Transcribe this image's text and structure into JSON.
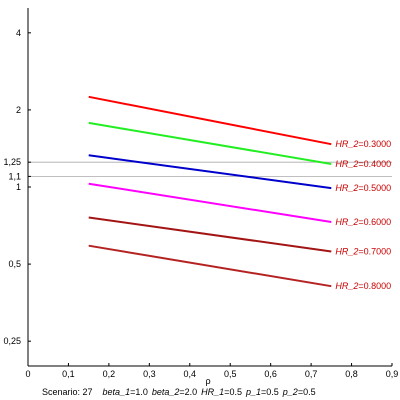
{
  "chart_data": {
    "type": "line",
    "title": "",
    "xlabel": "ρ",
    "ylabel": "",
    "xlim": [
      0,
      0.9
    ],
    "ylim": [
      0.2,
      5.0
    ],
    "y_scale": "log",
    "grid": false,
    "x_ticks": [
      {
        "value": 0,
        "label": "0"
      },
      {
        "value": 0.1,
        "label": "0,1"
      },
      {
        "value": 0.2,
        "label": "0,2"
      },
      {
        "value": 0.3,
        "label": "0,3"
      },
      {
        "value": 0.4,
        "label": "0,4"
      },
      {
        "value": 0.5,
        "label": "0,5"
      },
      {
        "value": 0.6,
        "label": "0,6"
      },
      {
        "value": 0.7,
        "label": "0,7"
      },
      {
        "value": 0.8,
        "label": "0,8"
      },
      {
        "value": 0.9,
        "label": "0,9"
      }
    ],
    "y_ticks": [
      {
        "value": 0.25,
        "label": "0,25"
      },
      {
        "value": 0.5,
        "label": "0,5"
      },
      {
        "value": 1,
        "label": "1"
      },
      {
        "value": 1.1,
        "label": "1,1"
      },
      {
        "value": 1.25,
        "label": "1,25"
      },
      {
        "value": 2,
        "label": "2"
      },
      {
        "value": 4,
        "label": "4"
      }
    ],
    "reference_lines": [
      1.1,
      1.25
    ],
    "series": [
      {
        "label_name": "HR_2",
        "label_value": "0.3000",
        "color": "#ff0000",
        "x": [
          0.15,
          0.75
        ],
        "y": [
          2.25,
          1.47
        ]
      },
      {
        "label_name": "HR_2",
        "label_value": "0.4000",
        "color": "#22ee22",
        "x": [
          0.15,
          0.75
        ],
        "y": [
          1.78,
          1.23
        ]
      },
      {
        "label_name": "HR_2",
        "label_value": "0.5000",
        "color": "#0000cc",
        "x": [
          0.15,
          0.75
        ],
        "y": [
          1.33,
          0.99
        ]
      },
      {
        "label_name": "HR_2",
        "label_value": "0.6000",
        "color": "#ff00ff",
        "x": [
          0.15,
          0.75
        ],
        "y": [
          1.03,
          0.73
        ]
      },
      {
        "label_name": "HR_2",
        "label_value": "0.7000",
        "color": "#a31515",
        "x": [
          0.15,
          0.75
        ],
        "y": [
          0.76,
          0.56
        ]
      },
      {
        "label_name": "HR_2",
        "label_value": "0.8000",
        "color": "#b52222",
        "x": [
          0.15,
          0.75
        ],
        "y": [
          0.59,
          0.41
        ]
      }
    ],
    "label_color": "#cc0000"
  },
  "caption": {
    "scenario_label": "Scenario: 27",
    "params": [
      {
        "name": "beta_1",
        "value": "1.0"
      },
      {
        "name": "beta_2",
        "value": "2.0"
      },
      {
        "name": "HR_1",
        "value": "0.5"
      },
      {
        "name": "p_1",
        "value": "0.5"
      },
      {
        "name": "p_2",
        "value": "0.5"
      }
    ]
  }
}
